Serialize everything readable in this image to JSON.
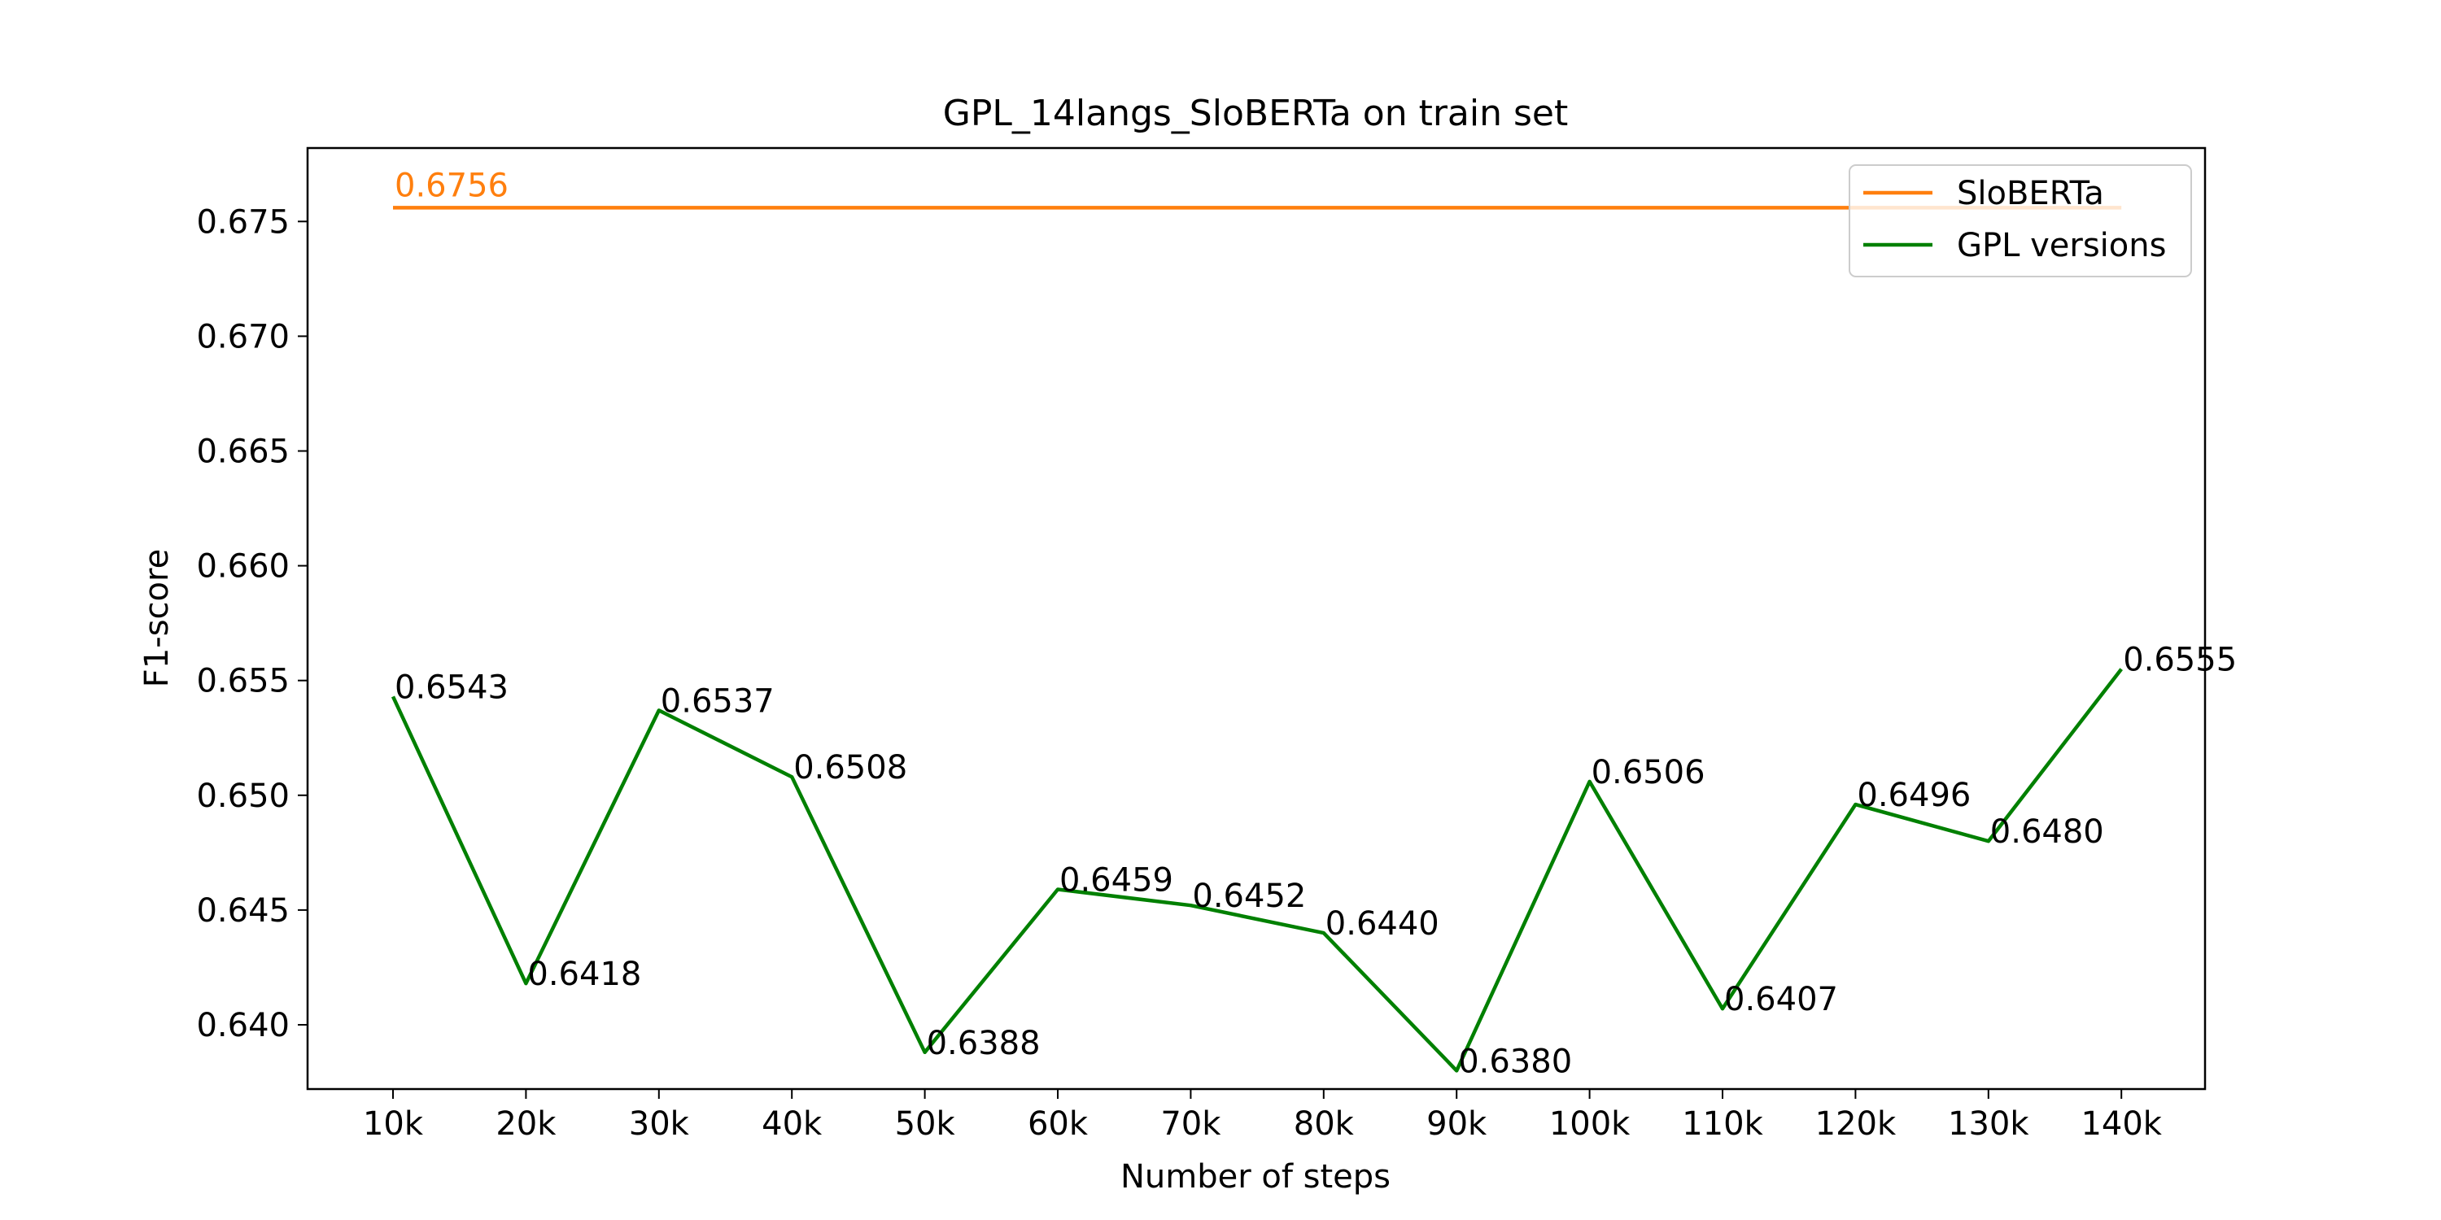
{
  "chart_data": {
    "type": "line",
    "title": "GPL_14langs_SloBERTa on train set",
    "xlabel": "Number of steps",
    "ylabel": "F1-score",
    "categories": [
      "10k",
      "20k",
      "30k",
      "40k",
      "50k",
      "60k",
      "70k",
      "80k",
      "90k",
      "100k",
      "110k",
      "120k",
      "130k",
      "140k"
    ],
    "ylim": [
      0.6372,
      0.6782
    ],
    "yticks": [
      "0.640",
      "0.645",
      "0.650",
      "0.655",
      "0.660",
      "0.665",
      "0.670",
      "0.675"
    ],
    "grid": false,
    "legend_position": "top-right",
    "series": [
      {
        "name": "SloBERTa",
        "color": "#ff7f0e",
        "values": [
          0.6756,
          0.6756,
          0.6756,
          0.6756,
          0.6756,
          0.6756,
          0.6756,
          0.6756,
          0.6756,
          0.6756,
          0.6756,
          0.6756,
          0.6756,
          0.6756
        ],
        "labels": [
          "0.6756"
        ],
        "label_indices": [
          0
        ]
      },
      {
        "name": "GPL versions",
        "color": "#008000",
        "values": [
          0.6543,
          0.6418,
          0.6537,
          0.6508,
          0.6388,
          0.6459,
          0.6452,
          0.644,
          0.638,
          0.6506,
          0.6407,
          0.6496,
          0.648,
          0.6555
        ],
        "labels": [
          "0.6543",
          "0.6418",
          "0.6537",
          "0.6508",
          "0.6388",
          "0.6459",
          "0.6452",
          "0.6440",
          "0.6380",
          "0.6506",
          "0.6407",
          "0.6496",
          "0.6480",
          "0.6555"
        ],
        "label_indices": [
          0,
          1,
          2,
          3,
          4,
          5,
          6,
          7,
          8,
          9,
          10,
          11,
          12,
          13
        ]
      }
    ]
  }
}
